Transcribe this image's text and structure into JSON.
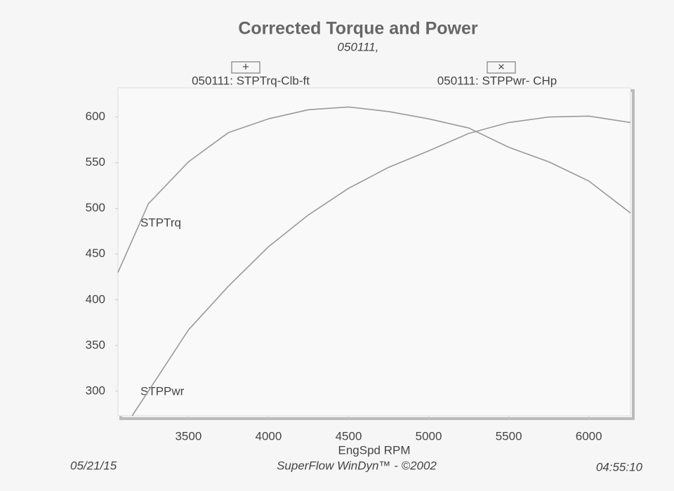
{
  "chart_data": {
    "type": "line",
    "title": "Corrected Torque and Power",
    "subtitle": "050111,",
    "x_label": "EngSpd  RPM",
    "series": [
      {
        "name": "050111: STPTrq-Clb-ft",
        "label": "STPTrq",
        "color": "#9a9a9a",
        "x": [
          3060,
          3250,
          3500,
          3750,
          4000,
          4250,
          4500,
          4750,
          5000,
          5250,
          5500,
          5750,
          6000,
          6260
        ],
        "values": [
          430,
          505,
          551,
          583,
          598,
          608,
          611,
          606,
          598,
          588,
          567,
          551,
          530,
          495
        ]
      },
      {
        "name": "050111: STPPwr- CHp",
        "label": "STPPwr",
        "color": "#9a9a9a",
        "x": [
          3148,
          3250,
          3500,
          3750,
          4000,
          4250,
          4500,
          4750,
          5000,
          5250,
          5500,
          5750,
          6000,
          6260
        ],
        "values": [
          273,
          300,
          367,
          415,
          458,
          493,
          522,
          545,
          563,
          582,
          594,
          600,
          601,
          594
        ]
      }
    ],
    "xlim": [
      3060,
      6260
    ],
    "ylim": [
      273,
      632
    ],
    "xticks": [
      3500,
      4000,
      4500,
      5000,
      5500,
      6000
    ],
    "yticks": [
      300,
      350,
      400,
      450,
      500,
      550,
      600
    ],
    "grid": false,
    "footer": {
      "date": "05/21/15",
      "software": "SuperFlow WinDyn™ - ©2002",
      "time": "04:55:10"
    }
  }
}
